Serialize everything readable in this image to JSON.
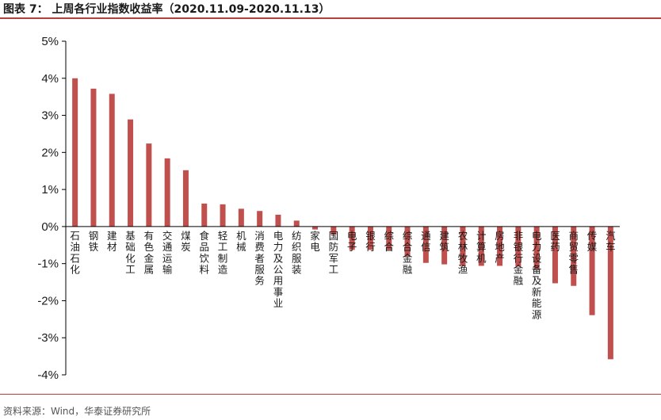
{
  "header": {
    "title": "图表 7：  上周各行业指数收益率（2020.11.09-2020.11.13）"
  },
  "footer": {
    "source": "资料来源：Wind，华泰证券研究所"
  },
  "colors": {
    "bar": "#c0504d",
    "rule": "#b8403a",
    "axis": "#000000"
  },
  "chart_data": {
    "type": "bar",
    "title": "上周各行业指数收益率（2020.11.09-2020.11.13）",
    "ylim": [
      -4,
      5
    ],
    "yticks": [
      {
        "value": 5,
        "label": "5%"
      },
      {
        "value": 4,
        "label": "4%"
      },
      {
        "value": 3,
        "label": "3%"
      },
      {
        "value": 2,
        "label": "2%"
      },
      {
        "value": 1,
        "label": "1%"
      },
      {
        "value": 0,
        "label": "0%"
      },
      {
        "value": -1,
        "label": "-1%"
      },
      {
        "value": -2,
        "label": "-2%"
      },
      {
        "value": -3,
        "label": "-3%"
      },
      {
        "value": -4,
        "label": "-4%"
      }
    ],
    "grid": false,
    "categories": [
      "石油石化",
      "钢铁",
      "建材",
      "基础化工",
      "有色金属",
      "交通运输",
      "煤炭",
      "食品饮料",
      "轻工制造",
      "机械",
      "消费者服务",
      "电力及公用事业",
      "纺织服装",
      "家电",
      "国防军工",
      "电子",
      "银行",
      "综合",
      "综合金融",
      "通信",
      "建筑",
      "农林牧渔",
      "计算机",
      "房地产",
      "非银行金融",
      "电力设备及新能源",
      "医药",
      "商贸零售",
      "传媒",
      "汽车"
    ],
    "values": [
      4.0,
      3.72,
      3.58,
      2.89,
      2.24,
      1.84,
      1.52,
      0.62,
      0.6,
      0.48,
      0.42,
      0.32,
      0.16,
      -0.08,
      -0.22,
      -0.63,
      -0.63,
      -0.63,
      -0.8,
      -0.98,
      -1.02,
      -1.06,
      -1.06,
      -1.06,
      -1.08,
      -1.15,
      -1.53,
      -1.6,
      -2.39,
      -3.58
    ]
  }
}
